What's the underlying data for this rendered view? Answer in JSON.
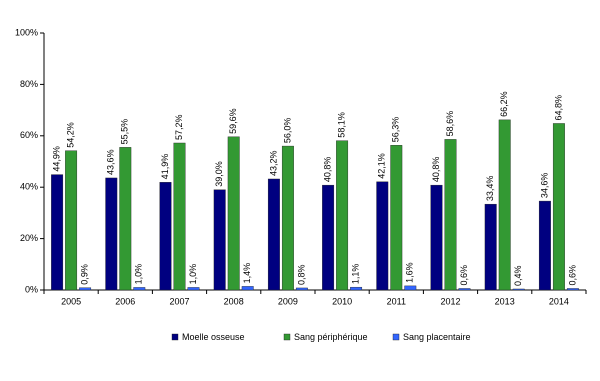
{
  "chart_data": {
    "type": "bar",
    "categories": [
      "2005",
      "2006",
      "2007",
      "2008",
      "2009",
      "2010",
      "2011",
      "2012",
      "2013",
      "2014"
    ],
    "series": [
      {
        "name": "Moelle osseuse",
        "color": "#000080",
        "values": [
          44.9,
          43.6,
          41.9,
          39.0,
          43.2,
          40.8,
          42.1,
          40.8,
          33.4,
          34.6
        ],
        "value_labels": [
          "44,9%",
          "43,6%",
          "41,9%",
          "39,0%",
          "43,2%",
          "40,8%",
          "42,1%",
          "40,8%",
          "33,4%",
          "34,6%"
        ]
      },
      {
        "name": "Sang périphérique",
        "color": "#339933",
        "values": [
          54.2,
          55.5,
          57.2,
          59.6,
          56.0,
          58.1,
          56.3,
          58.6,
          66.2,
          64.8
        ],
        "value_labels": [
          "54,2%",
          "55,5%",
          "57,2%",
          "59,6%",
          "56,0%",
          "58,1%",
          "56,3%",
          "58,6%",
          "66,2%",
          "64,8%"
        ]
      },
      {
        "name": "Sang placentaire",
        "color": "#3366ff",
        "values": [
          0.9,
          1.0,
          1.0,
          1.4,
          0.8,
          1.1,
          1.6,
          0.6,
          0.4,
          0.6
        ],
        "value_labels": [
          "0,9%",
          "1,0%",
          "1,0%",
          "1,4%",
          "0,8%",
          "1,1%",
          "1,6%",
          "0,6%",
          "0,4%",
          "0,6%"
        ]
      }
    ],
    "ylim": [
      0,
      100
    ],
    "yticks": [
      {
        "value": 0,
        "label": "0%"
      },
      {
        "value": 20,
        "label": "20%"
      },
      {
        "value": 40,
        "label": "40%"
      },
      {
        "value": 60,
        "label": "60%"
      },
      {
        "value": 80,
        "label": "80%"
      },
      {
        "value": 100,
        "label": "100%"
      }
    ],
    "grid": false,
    "legend": "bottom"
  }
}
